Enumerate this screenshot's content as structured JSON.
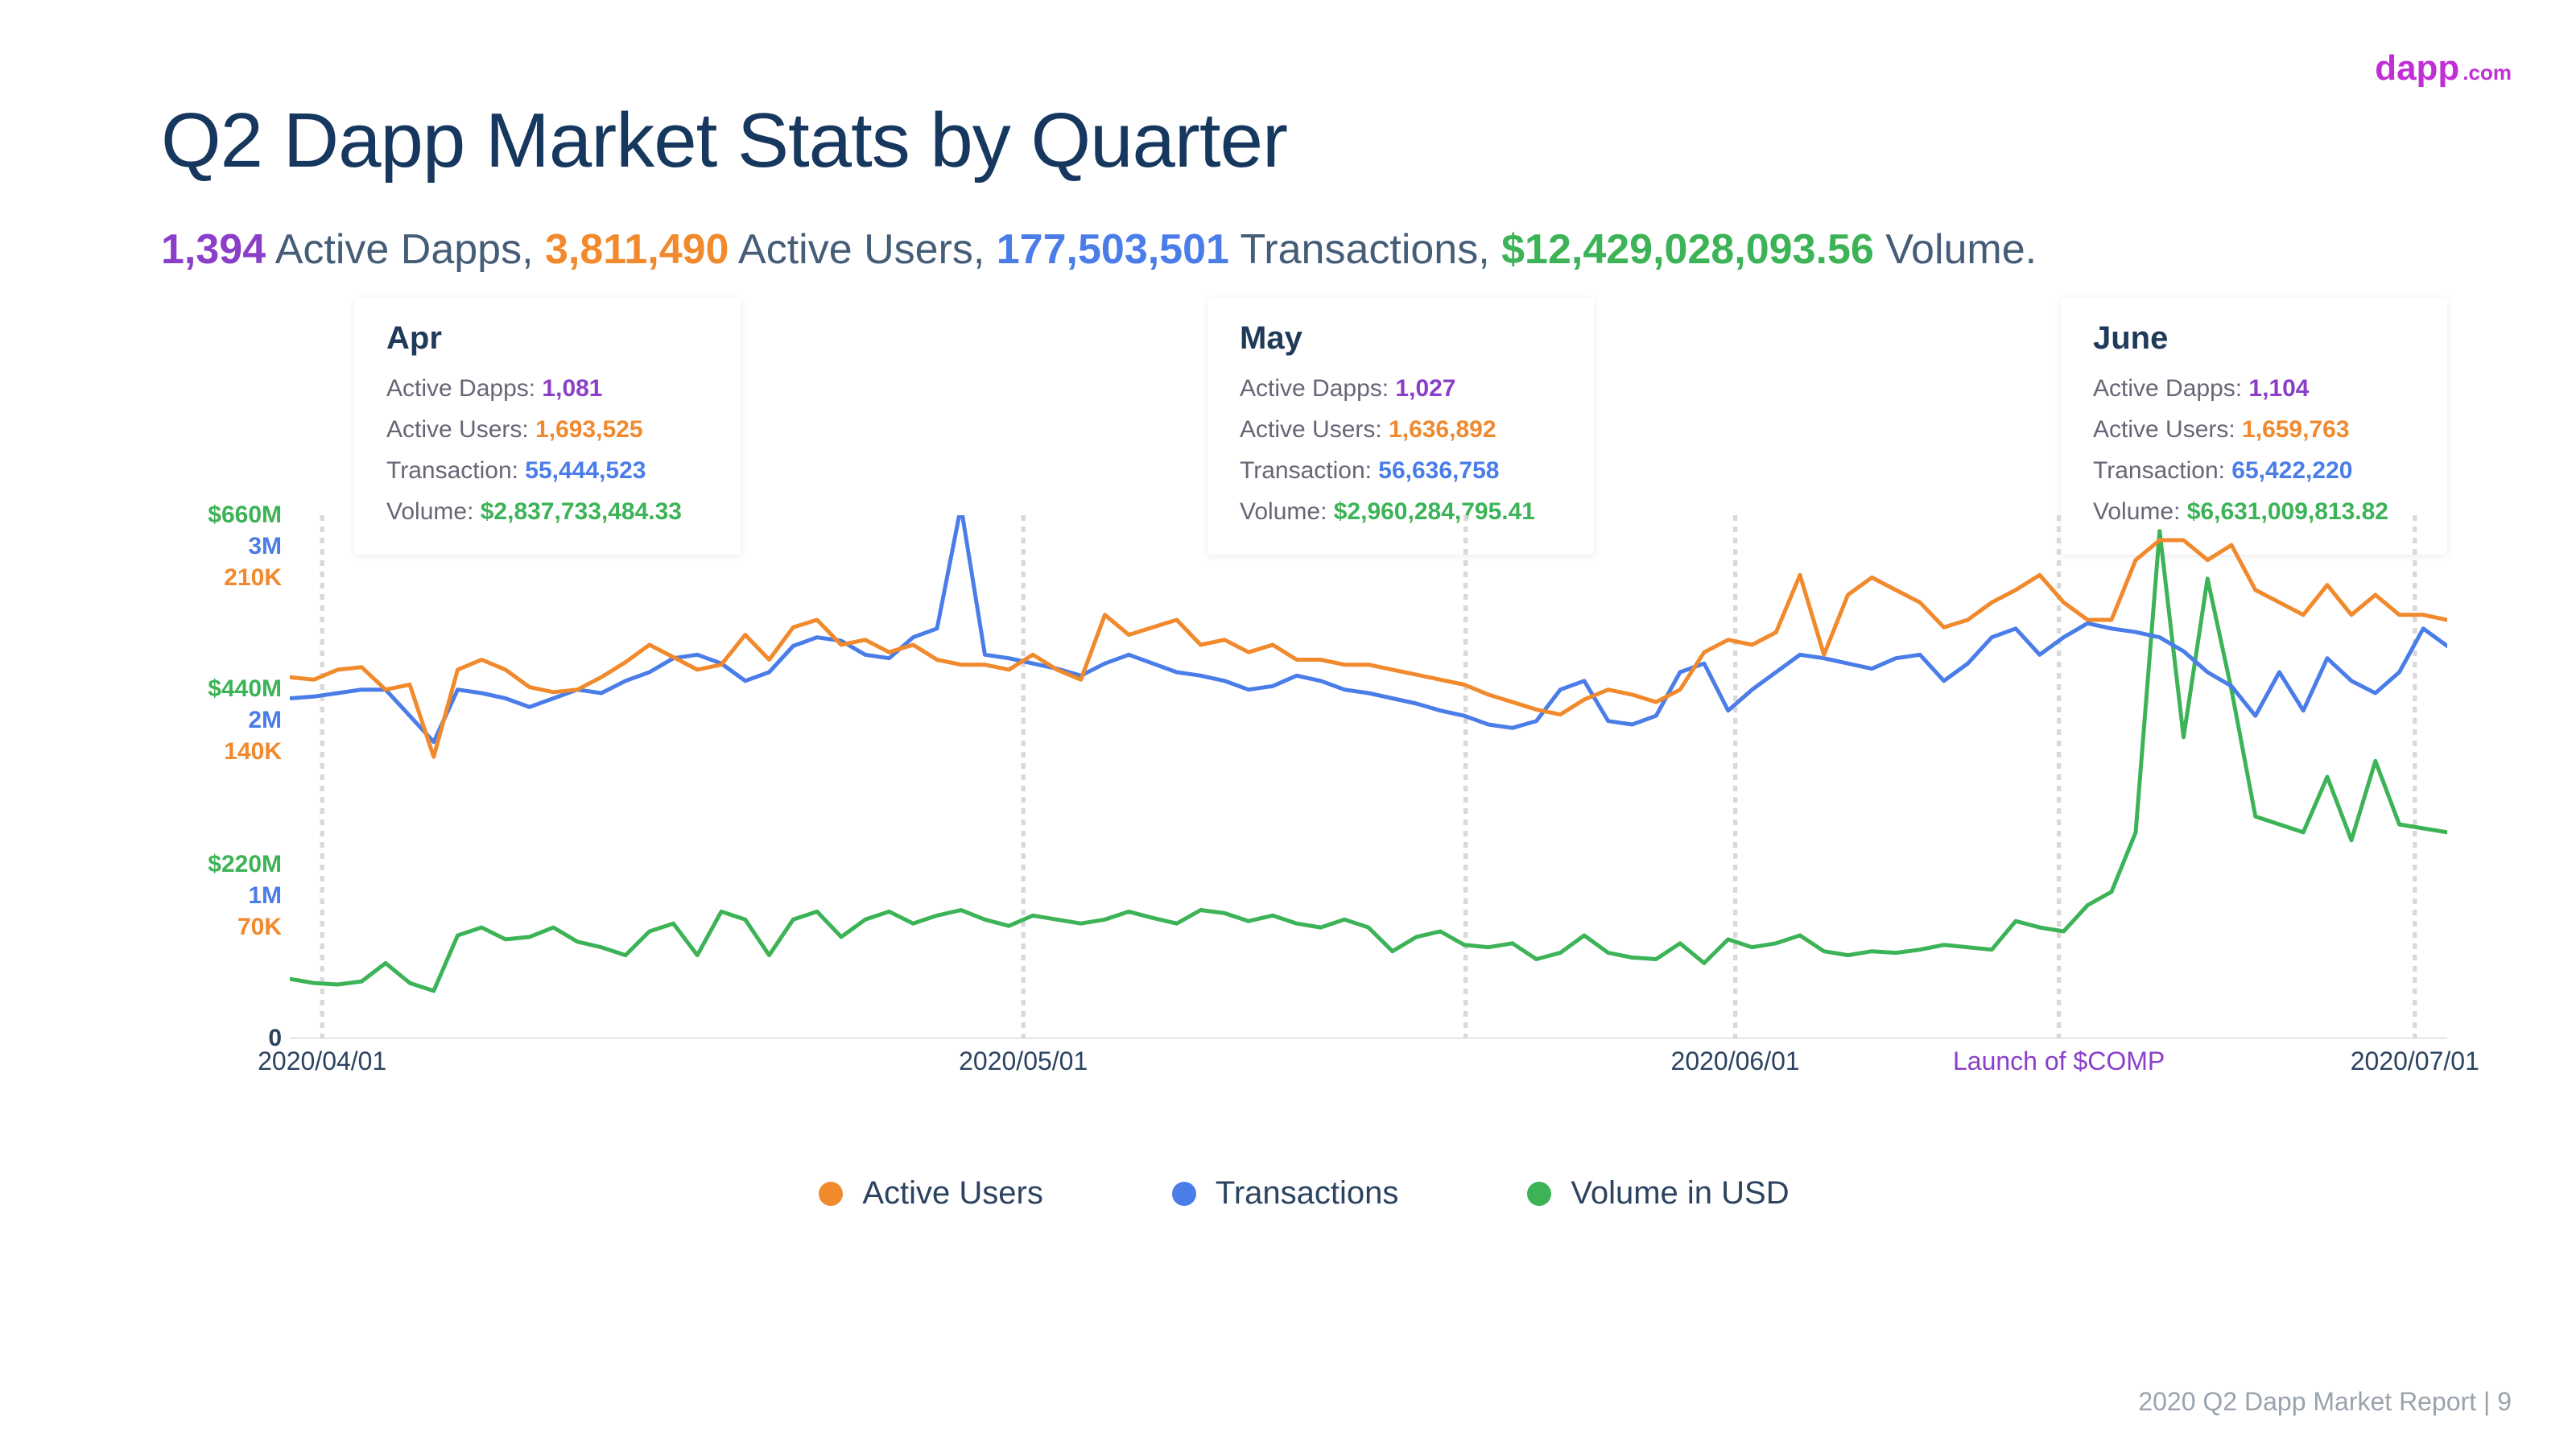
{
  "logo": {
    "text": "dapp",
    "suffix": ".com",
    "color": "#c02fd6"
  },
  "title": "Q2 Dapp Market Stats by Quarter",
  "subtitle": {
    "dapps": "1,394",
    "dapps_label": " Active Dapps, ",
    "users": "3,811,490",
    "users_label": " Active Users, ",
    "txn": "177,503,501",
    "txn_label": " Transactions, ",
    "vol": "$12,429,028,093.56",
    "vol_label": " Volume."
  },
  "cards": [
    {
      "month": "Apr",
      "dapps": "1,081",
      "users": "1,693,525",
      "txn": "55,444,523",
      "vol": "$2,837,733,484.33"
    },
    {
      "month": "May",
      "dapps": "1,027",
      "users": "1,636,892",
      "txn": "56,636,758",
      "vol": "$2,960,284,795.41"
    },
    {
      "month": "June",
      "dapps": "1,104",
      "users": "1,659,763",
      "txn": "65,422,220",
      "vol": "$6,631,009,813.82"
    }
  ],
  "card_labels": {
    "dapps": "Active Dapps: ",
    "users": "Active Users: ",
    "txn": "Transaction: ",
    "vol": "Volume:  "
  },
  "chart": {
    "type": "line",
    "background_color": "#ffffff",
    "grid_color": "#d9d9d9",
    "line_width": 5,
    "ymax_volume": 660,
    "ymax_txn": 3,
    "ymax_users": 210,
    "yticks": [
      {
        "pos": 0.0,
        "vol": "$660M",
        "txn": "3M",
        "users": "210K"
      },
      {
        "pos": 0.333,
        "vol": "$440M",
        "txn": "2M",
        "users": "140K"
      },
      {
        "pos": 0.667,
        "vol": "$220M",
        "txn": "1M",
        "users": "70K"
      },
      {
        "pos": 1.0,
        "zero": "0"
      }
    ],
    "xticks": [
      {
        "pos": 0.015,
        "label": "2020/04/01"
      },
      {
        "pos": 0.34,
        "label": "2020/05/01"
      },
      {
        "pos": 0.67,
        "label": "2020/06/01"
      },
      {
        "pos": 0.82,
        "label": "Launch of $COMP",
        "purple": true
      },
      {
        "pos": 0.985,
        "label": "2020/07/01"
      }
    ],
    "vlines": [
      0.015,
      0.34,
      0.545,
      0.67,
      0.82,
      0.985
    ],
    "series": {
      "users": {
        "color": "#f1892d",
        "values": [
          145,
          144,
          148,
          149,
          140,
          142,
          113,
          148,
          152,
          148,
          141,
          139,
          140,
          145,
          151,
          158,
          153,
          148,
          150,
          162,
          152,
          165,
          168,
          158,
          160,
          155,
          158,
          152,
          150,
          150,
          148,
          154,
          148,
          144,
          170,
          162,
          165,
          168,
          158,
          160,
          155,
          158,
          152,
          152,
          150,
          150,
          148,
          146,
          144,
          142,
          138,
          135,
          132,
          130,
          136,
          140,
          138,
          135,
          140,
          155,
          160,
          158,
          163,
          186,
          154,
          178,
          185,
          180,
          175,
          165,
          168,
          175,
          180,
          186,
          175,
          168,
          168,
          192,
          200,
          200,
          192,
          198,
          180,
          175,
          170,
          182,
          170,
          178,
          170,
          170,
          168
        ]
      },
      "txn": {
        "color": "#4a7de8",
        "values": [
          1.95,
          1.96,
          1.98,
          2.0,
          2.0,
          1.85,
          1.7,
          2.0,
          1.98,
          1.95,
          1.9,
          1.95,
          2.0,
          1.98,
          2.05,
          2.1,
          2.18,
          2.2,
          2.15,
          2.05,
          2.1,
          2.25,
          2.3,
          2.28,
          2.2,
          2.18,
          2.3,
          2.35,
          3.05,
          2.2,
          2.18,
          2.15,
          2.12,
          2.08,
          2.15,
          2.2,
          2.15,
          2.1,
          2.08,
          2.05,
          2.0,
          2.02,
          2.08,
          2.05,
          2.0,
          1.98,
          1.95,
          1.92,
          1.88,
          1.85,
          1.8,
          1.78,
          1.82,
          2.0,
          2.05,
          1.82,
          1.8,
          1.85,
          2.1,
          2.15,
          1.88,
          2.0,
          2.1,
          2.2,
          2.18,
          2.15,
          2.12,
          2.18,
          2.2,
          2.05,
          2.15,
          2.3,
          2.35,
          2.2,
          2.3,
          2.38,
          2.35,
          2.33,
          2.3,
          2.22,
          2.1,
          2.02,
          1.85,
          2.1,
          1.88,
          2.18,
          2.05,
          1.98,
          2.1,
          2.35,
          2.25
        ]
      },
      "volume": {
        "color": "#3cb356",
        "values": [
          75,
          70,
          68,
          72,
          95,
          70,
          60,
          130,
          140,
          125,
          128,
          140,
          122,
          115,
          105,
          135,
          145,
          105,
          160,
          150,
          105,
          150,
          160,
          128,
          150,
          160,
          145,
          155,
          162,
          150,
          142,
          155,
          150,
          145,
          150,
          160,
          152,
          145,
          162,
          158,
          148,
          155,
          145,
          140,
          150,
          140,
          110,
          128,
          135,
          118,
          115,
          120,
          100,
          108,
          130,
          108,
          102,
          100,
          120,
          95,
          125,
          115,
          120,
          130,
          110,
          105,
          110,
          108,
          112,
          118,
          115,
          112,
          148,
          140,
          135,
          168,
          185,
          260,
          640,
          380,
          580,
          440,
          280,
          270,
          260,
          330,
          250,
          350,
          270,
          265,
          260
        ]
      }
    }
  },
  "legend": [
    {
      "color": "#f1892d",
      "label": "Active Users"
    },
    {
      "color": "#4a7de8",
      "label": "Transactions"
    },
    {
      "color": "#3cb356",
      "label": "Volume in USD"
    }
  ],
  "footer": "2020 Q2 Dapp Market Report  |  9"
}
